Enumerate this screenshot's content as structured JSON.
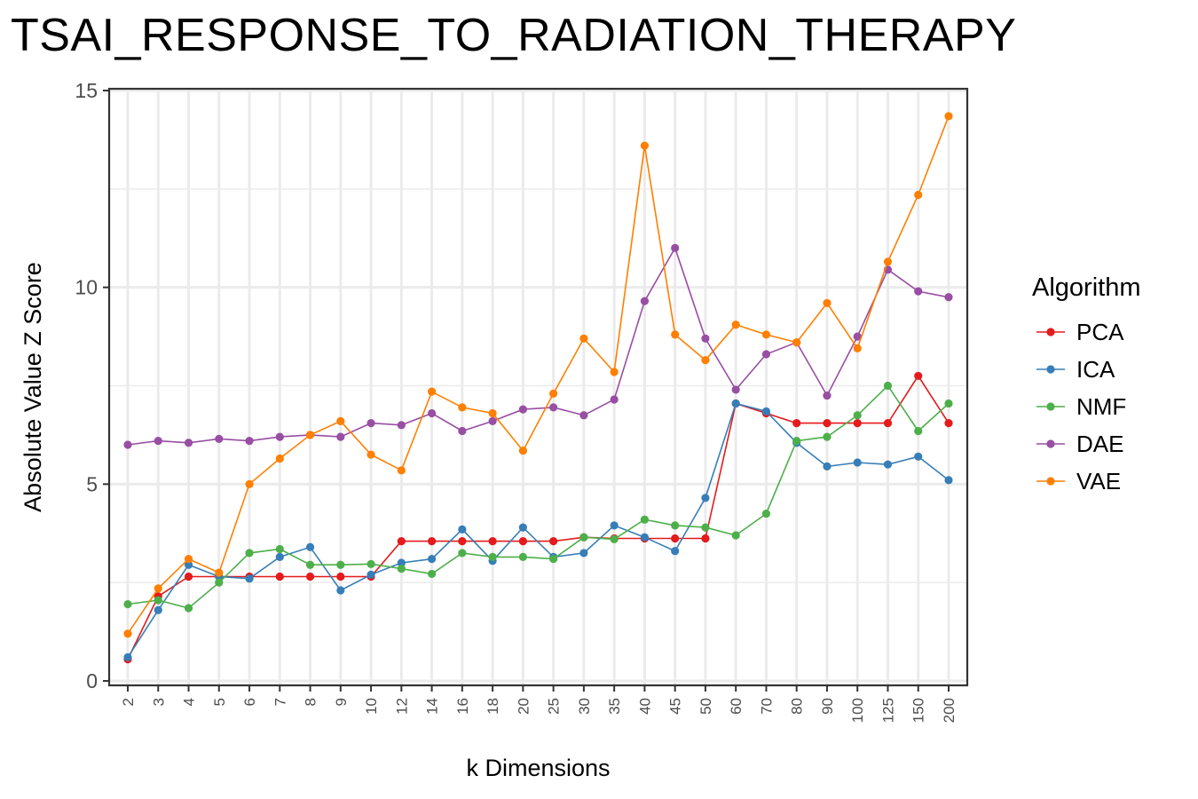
{
  "chart_data": {
    "type": "line",
    "title": "TSAI_RESPONSE_TO_RADIATION_THERAPY",
    "xlabel": "k Dimensions",
    "ylabel": "Absolute Value Z Score",
    "ylim": [
      0,
      15
    ],
    "yticks": [
      "0",
      "5",
      "10",
      "15"
    ],
    "categories": [
      "2",
      "3",
      "4",
      "5",
      "6",
      "7",
      "8",
      "9",
      "10",
      "12",
      "14",
      "16",
      "18",
      "20",
      "25",
      "30",
      "35",
      "40",
      "45",
      "50",
      "60",
      "70",
      "80",
      "90",
      "100",
      "125",
      "150",
      "200"
    ],
    "grid": true,
    "legend": {
      "title": "Algorithm",
      "position": "right"
    },
    "series": [
      {
        "name": "PCA",
        "color": "#E41A1C",
        "values": [
          0.55,
          2.15,
          2.65,
          2.65,
          2.65,
          2.65,
          2.65,
          2.65,
          2.65,
          3.55,
          3.55,
          3.55,
          3.55,
          3.55,
          3.55,
          3.65,
          3.62,
          3.62,
          3.62,
          3.62,
          7.05,
          6.8,
          6.55,
          6.55,
          6.55,
          6.55,
          7.75,
          6.55
        ]
      },
      {
        "name": "ICA",
        "color": "#377EB8",
        "values": [
          0.6,
          1.8,
          2.95,
          2.65,
          2.6,
          3.15,
          3.4,
          2.3,
          2.7,
          3.0,
          3.1,
          3.85,
          3.05,
          3.9,
          3.15,
          3.25,
          3.95,
          3.65,
          3.3,
          4.65,
          7.05,
          6.85,
          6.05,
          5.45,
          5.55,
          5.5,
          5.7,
          5.1
        ]
      },
      {
        "name": "NMF",
        "color": "#4DAF4A",
        "values": [
          1.95,
          2.05,
          1.85,
          2.5,
          3.25,
          3.35,
          2.95,
          2.95,
          2.97,
          2.85,
          2.72,
          3.25,
          3.15,
          3.15,
          3.1,
          3.65,
          3.6,
          4.1,
          3.95,
          3.9,
          3.7,
          4.25,
          6.1,
          6.2,
          6.75,
          7.5,
          6.35,
          7.05
        ]
      },
      {
        "name": "DAE",
        "color": "#984EA3",
        "values": [
          6.0,
          6.1,
          6.05,
          6.15,
          6.1,
          6.2,
          6.25,
          6.2,
          6.55,
          6.5,
          6.8,
          6.35,
          6.6,
          6.9,
          6.95,
          6.75,
          7.15,
          9.65,
          11.0,
          8.7,
          7.4,
          8.3,
          8.6,
          7.25,
          8.75,
          10.45,
          9.9,
          9.75
        ]
      },
      {
        "name": "VAE",
        "color": "#FF7F00",
        "values": [
          1.2,
          2.35,
          3.1,
          2.75,
          5.0,
          5.65,
          6.25,
          6.6,
          5.75,
          5.35,
          7.35,
          6.95,
          6.8,
          5.85,
          7.3,
          8.7,
          7.85,
          13.6,
          8.8,
          8.15,
          9.05,
          8.8,
          8.6,
          9.6,
          8.45,
          10.65,
          12.35,
          14.35
        ]
      }
    ]
  }
}
